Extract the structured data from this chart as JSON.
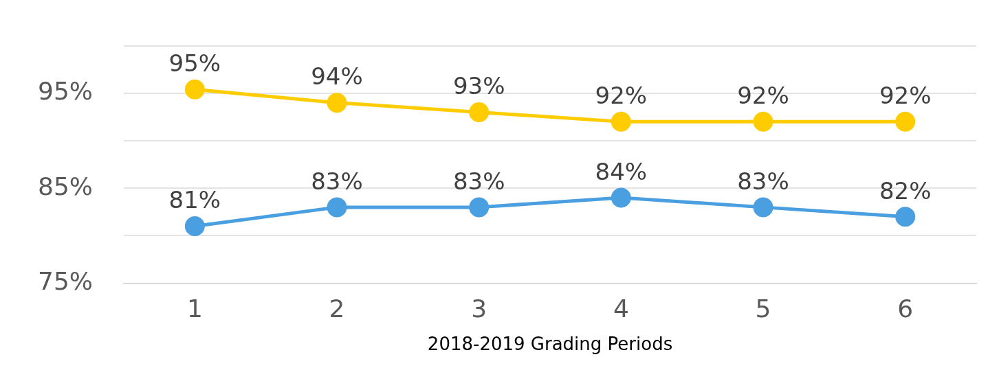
{
  "chart_data": {
    "type": "line",
    "xlabel": "2018-2019 Grading Periods",
    "categories": [
      "1",
      "2",
      "3",
      "4",
      "5",
      "6"
    ],
    "series": [
      {
        "color": "#ffcc00",
        "values": [
          95.4,
          94,
          93,
          92,
          92,
          92
        ],
        "value_labels": [
          "95%",
          "94%",
          "93%",
          "92%",
          "92%",
          "92%"
        ]
      },
      {
        "color": "#4a9fe0",
        "values": [
          81,
          83,
          83,
          84,
          83,
          82
        ],
        "value_labels": [
          "81%",
          "83%",
          "83%",
          "84%",
          "83%",
          "82%"
        ]
      }
    ],
    "ylim": [
      75,
      100
    ],
    "yticks": [
      {
        "value": 75,
        "label": "75%"
      },
      {
        "value": 80,
        "label": null
      },
      {
        "value": 85,
        "label": "85%"
      },
      {
        "value": 90,
        "label": null
      },
      {
        "value": 95,
        "label": "95%"
      },
      {
        "value": 100,
        "label": null
      }
    ],
    "grid": "y",
    "legend": false,
    "marker": "circle",
    "line_style": "solid"
  }
}
